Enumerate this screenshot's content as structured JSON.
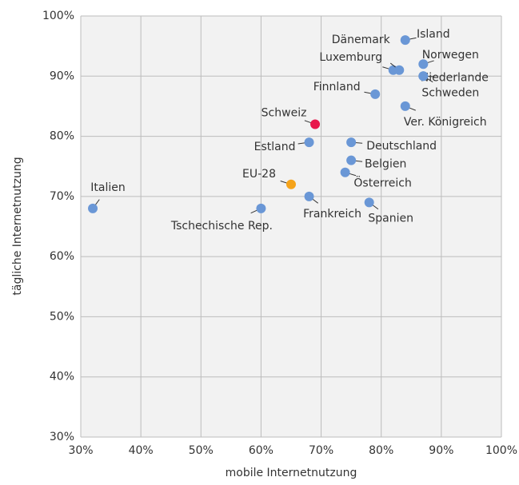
{
  "chart_data": {
    "type": "scatter",
    "xlabel": "mobile Internetnutzung",
    "ylabel": "tägliche Internetnutzung",
    "point_labels": [
      "Italien",
      "Tschechische Rep.",
      "EU-28",
      "Frankreich",
      "Estland",
      "Schweiz",
      "Deutschland",
      "Belgien",
      "Österreich",
      "Spanien",
      "Finnland",
      "Ver. Königreich",
      "Luxemburg",
      "Dänemark",
      "Island",
      "Norwegen",
      "Niederlande",
      "Schweden"
    ],
    "x": [
      32,
      60,
      65,
      68,
      68,
      69,
      75,
      75,
      74,
      78,
      79,
      84,
      82,
      83,
      84,
      87,
      87,
      87
    ],
    "values": [
      68,
      68,
      72,
      70,
      79,
      82,
      79,
      76,
      74,
      69,
      87,
      85,
      91,
      91,
      96,
      92,
      90,
      90
    ],
    "colors": [
      "#6a97d6",
      "#6a97d6",
      "#f5a31a",
      "#6a97d6",
      "#6a97d6",
      "#e8174b",
      "#6a97d6",
      "#6a97d6",
      "#6a97d6",
      "#6a97d6",
      "#6a97d6",
      "#6a97d6",
      "#6a97d6",
      "#6a97d6",
      "#6a97d6",
      "#6a97d6",
      "#6a97d6",
      "#6a97d6"
    ],
    "xlim": [
      30,
      100
    ],
    "ylim": [
      30,
      100
    ],
    "xticks": [
      {
        "value": 30,
        "label": "30%"
      },
      {
        "value": 40,
        "label": "40%"
      },
      {
        "value": 50,
        "label": "50%"
      },
      {
        "value": 60,
        "label": "60%"
      },
      {
        "value": 70,
        "label": "70%"
      },
      {
        "value": 80,
        "label": "80%"
      },
      {
        "value": 90,
        "label": "90%"
      },
      {
        "value": 100,
        "label": "100%"
      }
    ],
    "yticks": [
      {
        "value": 30,
        "label": "30%"
      },
      {
        "value": 40,
        "label": "40%"
      },
      {
        "value": 50,
        "label": "50%"
      },
      {
        "value": 60,
        "label": "60%"
      },
      {
        "value": 70,
        "label": "70%"
      },
      {
        "value": 80,
        "label": "80%"
      },
      {
        "value": 90,
        "label": "90%"
      },
      {
        "value": 100,
        "label": "100%"
      }
    ],
    "grid": true
  }
}
